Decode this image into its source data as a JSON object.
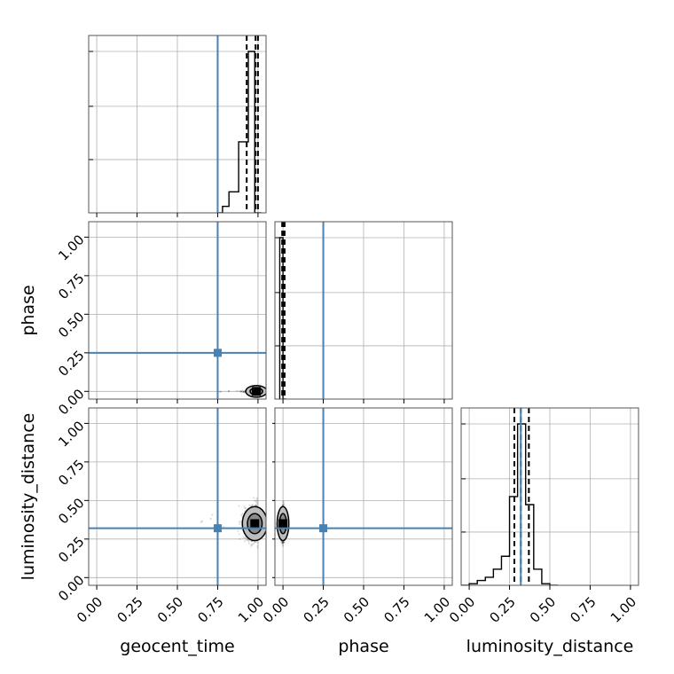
{
  "chart_data": {
    "type": "corner",
    "parameters": [
      "geocent_time",
      "phase",
      "luminosity_distance"
    ],
    "axis_labels": {
      "geocent_time": "geocent_time",
      "phase": "phase",
      "luminosity_distance": "luminosity_distance"
    },
    "tick_values": [
      0.0,
      0.25,
      0.5,
      0.75,
      1.0
    ],
    "tick_labels": [
      "0.00",
      "0.25",
      "0.50",
      "0.75",
      "1.00"
    ],
    "xlim": [
      -0.05,
      1.05
    ],
    "ylim": [
      -0.05,
      1.1
    ],
    "grid": true,
    "truths": {
      "geocent_time": 0.75,
      "phase": 0.25,
      "luminosity_distance": 0.32
    },
    "truth_color": "#4682b4",
    "hist_color": "#000000",
    "histograms": {
      "geocent_time": {
        "bin_edges": [
          0.75,
          0.78,
          0.82,
          0.88,
          0.94,
          0.98,
          1.02
        ],
        "counts": [
          0,
          0.04,
          0.13,
          0.44,
          1.0,
          0.0
        ],
        "quantiles": [
          0.93,
          0.985,
          1.0
        ]
      },
      "phase": {
        "bin_edges": [
          -0.02,
          0.0,
          0.02
        ],
        "counts": [
          1.0,
          0.0
        ],
        "quantiles": [
          -0.005,
          0.0,
          0.01
        ]
      },
      "luminosity_distance": {
        "bin_edges": [
          -0.05,
          0.0,
          0.05,
          0.1,
          0.15,
          0.2,
          0.25,
          0.3,
          0.35,
          0.4,
          0.45,
          0.5,
          0.55
        ],
        "counts": [
          0,
          0.01,
          0.03,
          0.05,
          0.1,
          0.18,
          0.55,
          1.0,
          0.5,
          0.1,
          0.01,
          0
        ],
        "quantiles": [
          0.28,
          0.32,
          0.37
        ]
      }
    },
    "scatter_panels": [
      {
        "x": "geocent_time",
        "y": "phase",
        "center": [
          0.99,
          0.0
        ],
        "spread": [
          0.03,
          0.004
        ]
      },
      {
        "x": "geocent_time",
        "y": "luminosity_distance",
        "center": [
          0.98,
          0.35
        ],
        "spread": [
          0.035,
          0.05
        ]
      },
      {
        "x": "phase",
        "y": "luminosity_distance",
        "center": [
          0.0,
          0.35
        ],
        "spread": [
          0.004,
          0.05
        ]
      }
    ]
  }
}
